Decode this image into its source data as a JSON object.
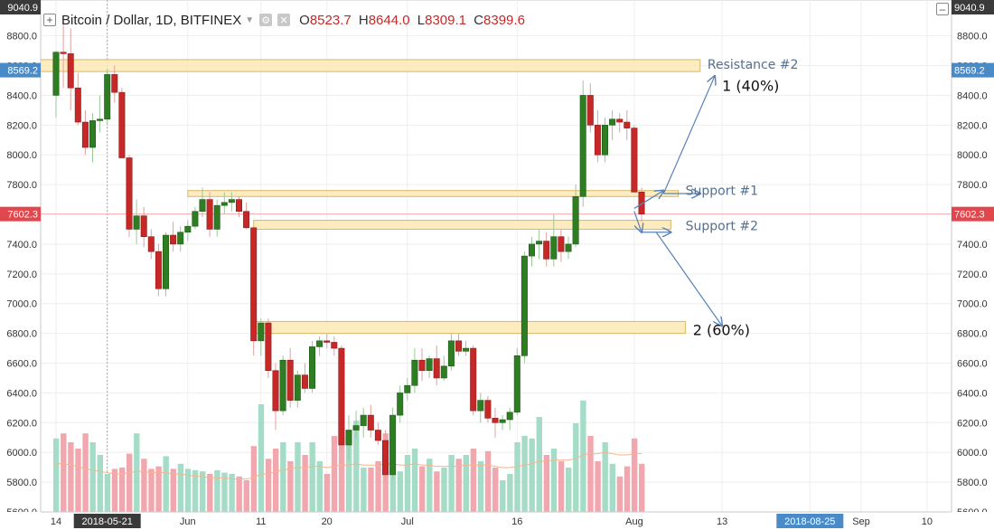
{
  "header": {
    "symbol": "Bitcoin / Dollar, 1D, BITFINEX",
    "open_label": "O",
    "open": "8523.7",
    "high_label": "H",
    "high": "8644.0",
    "low_label": "L",
    "low": "8309.1",
    "close_label": "C",
    "close": "8399.6",
    "icons": [
      "plus-square-icon",
      "dropdown-caret-icon",
      "settings-gear-icon",
      "close-x-icon",
      "minus-square-icon"
    ]
  },
  "colors": {
    "up": "#2e7d22",
    "down": "#c62828",
    "vol_up": "#a5dcc7",
    "vol_down": "#f2a6ae",
    "zone_fill": "#fde9b4",
    "zone_stroke": "#d7b86a",
    "arrow": "#5a82b8",
    "ma": "#f5b58c",
    "price_line": "#f4b0b0",
    "axis_text": "#333333",
    "last_price_bg": "#e0484e",
    "marker_bg": "#4a8bc7",
    "zone_label": "#56708f"
  },
  "chart_data": {
    "type": "candlestick",
    "symbol": "Bitcoin / Dollar",
    "interval": "1D",
    "exchange": "BITFINEX",
    "ylim": [
      5600,
      9040.9
    ],
    "y_ticks": [
      "5600.0",
      "5800.0",
      "6000.0",
      "6200.0",
      "6400.0",
      "6600.0",
      "6800.0",
      "7000.0",
      "7200.0",
      "7400.0",
      "7600.0",
      "7800.0",
      "8000.0",
      "8200.0",
      "8400.0",
      "8600.0",
      "8800.0"
    ],
    "y_top_label": "9040.9",
    "x_ticks": [
      {
        "label": "14",
        "day": 0
      },
      {
        "label": "2018-05-21",
        "day": 7,
        "highlight": true
      },
      {
        "label": "Jun",
        "day": 18
      },
      {
        "label": "11",
        "day": 28
      },
      {
        "label": "20",
        "day": 37
      },
      {
        "label": "Jul",
        "day": 48
      },
      {
        "label": "16",
        "day": 63
      },
      {
        "label": "Aug",
        "day": 79
      },
      {
        "label": "13",
        "day": 91
      },
      {
        "label": "2018-08-25",
        "day": 103,
        "highlight": true
      },
      {
        "label": "Sep",
        "day": 110
      },
      {
        "label": "10",
        "day": 119
      }
    ],
    "last_price": 7602.3,
    "marker_price": 8569.2,
    "grid": true,
    "candles": [
      {
        "o": 8400,
        "h": 8700,
        "l": 8250,
        "c": 8690
      },
      {
        "o": 8690,
        "h": 8900,
        "l": 8450,
        "c": 8680
      },
      {
        "o": 8680,
        "h": 8850,
        "l": 8300,
        "c": 8450
      },
      {
        "o": 8450,
        "h": 8550,
        "l": 8200,
        "c": 8220
      },
      {
        "o": 8220,
        "h": 8300,
        "l": 8000,
        "c": 8050
      },
      {
        "o": 8050,
        "h": 8280,
        "l": 7950,
        "c": 8230
      },
      {
        "o": 8230,
        "h": 8400,
        "l": 8150,
        "c": 8240
      },
      {
        "o": 8240,
        "h": 8580,
        "l": 8200,
        "c": 8540
      },
      {
        "o": 8540,
        "h": 8600,
        "l": 8350,
        "c": 8420
      },
      {
        "o": 8420,
        "h": 8450,
        "l": 8000,
        "c": 7980
      },
      {
        "o": 7980,
        "h": 8000,
        "l": 7450,
        "c": 7500
      },
      {
        "o": 7500,
        "h": 7700,
        "l": 7400,
        "c": 7590
      },
      {
        "o": 7590,
        "h": 7650,
        "l": 7380,
        "c": 7450
      },
      {
        "o": 7450,
        "h": 7500,
        "l": 7300,
        "c": 7350
      },
      {
        "o": 7350,
        "h": 7400,
        "l": 7050,
        "c": 7100
      },
      {
        "o": 7100,
        "h": 7480,
        "l": 7050,
        "c": 7460
      },
      {
        "o": 7460,
        "h": 7550,
        "l": 7350,
        "c": 7400
      },
      {
        "o": 7400,
        "h": 7520,
        "l": 7350,
        "c": 7480
      },
      {
        "o": 7480,
        "h": 7560,
        "l": 7420,
        "c": 7520
      },
      {
        "o": 7520,
        "h": 7650,
        "l": 7500,
        "c": 7620
      },
      {
        "o": 7620,
        "h": 7780,
        "l": 7580,
        "c": 7700
      },
      {
        "o": 7700,
        "h": 7750,
        "l": 7450,
        "c": 7500
      },
      {
        "o": 7500,
        "h": 7700,
        "l": 7450,
        "c": 7660
      },
      {
        "o": 7660,
        "h": 7750,
        "l": 7600,
        "c": 7680
      },
      {
        "o": 7680,
        "h": 7750,
        "l": 7620,
        "c": 7700
      },
      {
        "o": 7700,
        "h": 7720,
        "l": 7580,
        "c": 7620
      },
      {
        "o": 7620,
        "h": 7680,
        "l": 7500,
        "c": 7510
      },
      {
        "o": 7510,
        "h": 7520,
        "l": 6650,
        "c": 6750
      },
      {
        "o": 6750,
        "h": 6900,
        "l": 6650,
        "c": 6870
      },
      {
        "o": 6870,
        "h": 6900,
        "l": 6500,
        "c": 6550
      },
      {
        "o": 6550,
        "h": 6600,
        "l": 6150,
        "c": 6280
      },
      {
        "o": 6280,
        "h": 6650,
        "l": 6250,
        "c": 6620
      },
      {
        "o": 6620,
        "h": 6700,
        "l": 6300,
        "c": 6350
      },
      {
        "o": 6350,
        "h": 6550,
        "l": 6300,
        "c": 6520
      },
      {
        "o": 6520,
        "h": 6600,
        "l": 6400,
        "c": 6430
      },
      {
        "o": 6430,
        "h": 6750,
        "l": 6400,
        "c": 6710
      },
      {
        "o": 6710,
        "h": 6780,
        "l": 6650,
        "c": 6750
      },
      {
        "o": 6750,
        "h": 6800,
        "l": 6700,
        "c": 6740
      },
      {
        "o": 6740,
        "h": 6780,
        "l": 6650,
        "c": 6700
      },
      {
        "o": 6700,
        "h": 6720,
        "l": 6000,
        "c": 6050
      },
      {
        "o": 6050,
        "h": 6250,
        "l": 5950,
        "c": 6150
      },
      {
        "o": 6150,
        "h": 6280,
        "l": 6100,
        "c": 6180
      },
      {
        "o": 6180,
        "h": 6300,
        "l": 6100,
        "c": 6250
      },
      {
        "o": 6250,
        "h": 6320,
        "l": 6100,
        "c": 6150
      },
      {
        "o": 6150,
        "h": 6200,
        "l": 6050,
        "c": 6080
      },
      {
        "o": 6080,
        "h": 6150,
        "l": 5800,
        "c": 5850
      },
      {
        "o": 5850,
        "h": 6300,
        "l": 5820,
        "c": 6250
      },
      {
        "o": 6250,
        "h": 6450,
        "l": 6200,
        "c": 6400
      },
      {
        "o": 6400,
        "h": 6500,
        "l": 6350,
        "c": 6450
      },
      {
        "o": 6450,
        "h": 6700,
        "l": 6400,
        "c": 6620
      },
      {
        "o": 6620,
        "h": 6700,
        "l": 6480,
        "c": 6550
      },
      {
        "o": 6550,
        "h": 6650,
        "l": 6500,
        "c": 6630
      },
      {
        "o": 6630,
        "h": 6720,
        "l": 6450,
        "c": 6500
      },
      {
        "o": 6500,
        "h": 6650,
        "l": 6480,
        "c": 6580
      },
      {
        "o": 6580,
        "h": 6800,
        "l": 6550,
        "c": 6750
      },
      {
        "o": 6750,
        "h": 6800,
        "l": 6650,
        "c": 6680
      },
      {
        "o": 6680,
        "h": 6750,
        "l": 6650,
        "c": 6700
      },
      {
        "o": 6700,
        "h": 6720,
        "l": 6250,
        "c": 6280
      },
      {
        "o": 6280,
        "h": 6400,
        "l": 6200,
        "c": 6350
      },
      {
        "o": 6350,
        "h": 6380,
        "l": 6200,
        "c": 6230
      },
      {
        "o": 6230,
        "h": 6300,
        "l": 6100,
        "c": 6200
      },
      {
        "o": 6200,
        "h": 6250,
        "l": 6150,
        "c": 6220
      },
      {
        "o": 6220,
        "h": 6300,
        "l": 6150,
        "c": 6270
      },
      {
        "o": 6270,
        "h": 6700,
        "l": 6250,
        "c": 6650
      },
      {
        "o": 6650,
        "h": 7350,
        "l": 6600,
        "c": 7320
      },
      {
        "o": 7320,
        "h": 7450,
        "l": 7250,
        "c": 7400
      },
      {
        "o": 7400,
        "h": 7500,
        "l": 7300,
        "c": 7420
      },
      {
        "o": 7420,
        "h": 7480,
        "l": 7250,
        "c": 7300
      },
      {
        "o": 7300,
        "h": 7600,
        "l": 7250,
        "c": 7450
      },
      {
        "o": 7450,
        "h": 7500,
        "l": 7280,
        "c": 7350
      },
      {
        "o": 7350,
        "h": 7450,
        "l": 7300,
        "c": 7400
      },
      {
        "o": 7400,
        "h": 7800,
        "l": 7380,
        "c": 7720
      },
      {
        "o": 7720,
        "h": 8500,
        "l": 7650,
        "c": 8400
      },
      {
        "o": 8400,
        "h": 8480,
        "l": 8150,
        "c": 8200
      },
      {
        "o": 8200,
        "h": 8300,
        "l": 7950,
        "c": 8000
      },
      {
        "o": 8000,
        "h": 8250,
        "l": 7950,
        "c": 8200
      },
      {
        "o": 8200,
        "h": 8300,
        "l": 8100,
        "c": 8240
      },
      {
        "o": 8240,
        "h": 8280,
        "l": 8150,
        "c": 8220
      },
      {
        "o": 8220,
        "h": 8300,
        "l": 8100,
        "c": 8180
      },
      {
        "o": 8180,
        "h": 8200,
        "l": 7750,
        "c": 7750
      },
      {
        "o": 7750,
        "h": 7780,
        "l": 7550,
        "c": 7602
      }
    ],
    "volumes": [
      0.58,
      0.62,
      0.55,
      0.5,
      0.62,
      0.55,
      0.45,
      0.3,
      0.34,
      0.35,
      0.46,
      0.62,
      0.42,
      0.34,
      0.36,
      0.44,
      0.34,
      0.38,
      0.34,
      0.33,
      0.32,
      0.3,
      0.33,
      0.31,
      0.3,
      0.28,
      0.25,
      0.52,
      0.85,
      0.42,
      0.5,
      0.55,
      0.4,
      0.55,
      0.45,
      0.55,
      0.4,
      0.3,
      0.6,
      0.62,
      0.55,
      0.72,
      0.35,
      0.35,
      0.4,
      0.62,
      0.4,
      0.32,
      0.45,
      0.5,
      0.36,
      0.42,
      0.32,
      0.35,
      0.45,
      0.42,
      0.45,
      0.5,
      0.4,
      0.48,
      0.35,
      0.25,
      0.3,
      0.55,
      0.6,
      0.58,
      0.75,
      0.45,
      0.5,
      0.4,
      0.35,
      0.7,
      0.88,
      0.6,
      0.4,
      0.55,
      0.38,
      0.28,
      0.36,
      0.58,
      0.38
    ],
    "moving_average": [
      0.38,
      0.38,
      0.37,
      0.36,
      0.34,
      0.33,
      0.32,
      0.31,
      0.3,
      0.3,
      0.31,
      0.32,
      0.32,
      0.31,
      0.31,
      0.31,
      0.3,
      0.3,
      0.29,
      0.28,
      0.28,
      0.27,
      0.27,
      0.27,
      0.26,
      0.26,
      0.26,
      0.27,
      0.3,
      0.3,
      0.32,
      0.33,
      0.34,
      0.35,
      0.35,
      0.36,
      0.36,
      0.35,
      0.36,
      0.37,
      0.37,
      0.38,
      0.37,
      0.37,
      0.37,
      0.38,
      0.38,
      0.37,
      0.37,
      0.38,
      0.37,
      0.37,
      0.36,
      0.36,
      0.36,
      0.36,
      0.37,
      0.37,
      0.37,
      0.37,
      0.36,
      0.35,
      0.35,
      0.36,
      0.37,
      0.38,
      0.4,
      0.4,
      0.41,
      0.41,
      0.41,
      0.42,
      0.45,
      0.46,
      0.46,
      0.47,
      0.46,
      0.45,
      0.45,
      0.46,
      0.46
    ],
    "zones": [
      {
        "name": "Resistance #2",
        "from_day": -3,
        "to_day": 88,
        "low": 8560,
        "high": 8640
      },
      {
        "name": "Support #1",
        "from_day": 18,
        "to_day": 85,
        "low": 7720,
        "high": 7760
      },
      {
        "name": "Support #2",
        "from_day": 27,
        "to_day": 84,
        "low": 7500,
        "high": 7560
      },
      {
        "name": "2 (60%)",
        "from_day": 27,
        "to_day": 86,
        "low": 6800,
        "high": 6880
      }
    ],
    "annotations": [
      {
        "text": "Resistance #2",
        "day": 89,
        "price": 8610,
        "style": "zone"
      },
      {
        "text": "1 (40%)",
        "day": 91,
        "price": 8460,
        "style": "target"
      },
      {
        "text": "Support #1",
        "day": 86,
        "price": 7760,
        "style": "zone"
      },
      {
        "text": "Support #2",
        "day": 86,
        "price": 7525,
        "style": "zone"
      },
      {
        "text": "2 (60%)",
        "day": 87,
        "price": 6820,
        "style": "target"
      }
    ],
    "arrows": [
      {
        "from": [
          79,
          7640
        ],
        "to": [
          83,
          7760
        ]
      },
      {
        "from": [
          83,
          7740
        ],
        "to": [
          88,
          7740
        ]
      },
      {
        "from": [
          83,
          7740
        ],
        "to": [
          90,
          8530
        ]
      },
      {
        "from": [
          79,
          7620
        ],
        "to": [
          80,
          7480
        ]
      },
      {
        "from": [
          80,
          7480
        ],
        "to": [
          84,
          7480
        ]
      },
      {
        "from": [
          82,
          7480
        ],
        "to": [
          91,
          6850
        ]
      }
    ]
  }
}
